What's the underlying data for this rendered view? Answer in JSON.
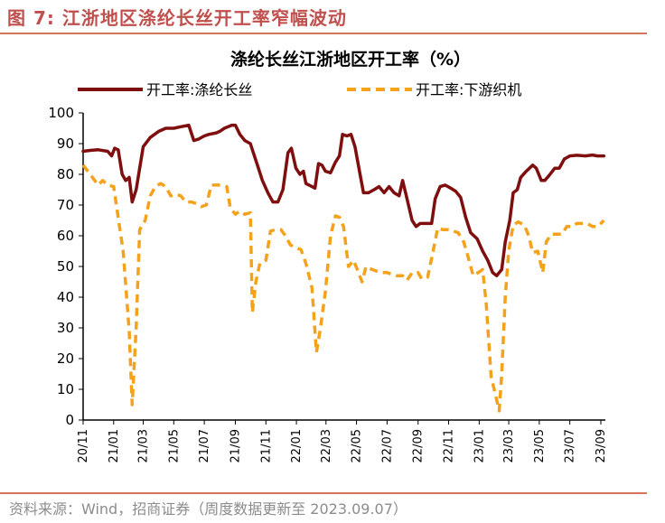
{
  "figure": {
    "number": "图 7:",
    "title": "江浙地区涤纶长丝开工率窄幅波动",
    "source": "资料来源：Wind，招商证券（周度数据更新至 2023.09.07）"
  },
  "colors": {
    "series1": "#7f0e0e",
    "series2": "#f4a21c",
    "accent": "#c0504d",
    "rule": "#d2755a"
  },
  "chart_data": {
    "type": "line",
    "title": "涤纶长丝江浙地区开工率（%）",
    "ylim": [
      0,
      100
    ],
    "yticks": [
      0,
      10,
      20,
      30,
      40,
      50,
      60,
      70,
      80,
      90,
      100
    ],
    "xlim": [
      "2020-11-01",
      "2023-09-10"
    ],
    "xticks": [
      "20/11",
      "21/01",
      "21/03",
      "21/05",
      "21/07",
      "21/09",
      "21/11",
      "22/01",
      "22/03",
      "22/05",
      "22/07",
      "22/09",
      "22/11",
      "23/01",
      "23/03",
      "23/05",
      "23/07",
      "23/09"
    ],
    "legend_position": "top",
    "grid": false,
    "series": [
      {
        "name": "开工率:涤纶长丝",
        "style": "solid",
        "points": [
          [
            "2020-11-01",
            87.5
          ],
          [
            "2020-11-15",
            87.8
          ],
          [
            "2020-12-01",
            88
          ],
          [
            "2020-12-20",
            87.5
          ],
          [
            "2020-12-28",
            86
          ],
          [
            "2021-01-03",
            88.5
          ],
          [
            "2021-01-10",
            88
          ],
          [
            "2021-01-18",
            80
          ],
          [
            "2021-01-25",
            78
          ],
          [
            "2021-02-01",
            79
          ],
          [
            "2021-02-07",
            71
          ],
          [
            "2021-02-15",
            75
          ],
          [
            "2021-02-22",
            82
          ],
          [
            "2021-03-01",
            89
          ],
          [
            "2021-03-15",
            92
          ],
          [
            "2021-04-01",
            94
          ],
          [
            "2021-04-15",
            95
          ],
          [
            "2021-05-01",
            95
          ],
          [
            "2021-05-15",
            95.5
          ],
          [
            "2021-05-31",
            96
          ],
          [
            "2021-06-10",
            91
          ],
          [
            "2021-06-20",
            91.5
          ],
          [
            "2021-07-01",
            92.5
          ],
          [
            "2021-07-10",
            93
          ],
          [
            "2021-07-25",
            93.5
          ],
          [
            "2021-08-01",
            94
          ],
          [
            "2021-08-10",
            95
          ],
          [
            "2021-08-25",
            96
          ],
          [
            "2021-09-01",
            96
          ],
          [
            "2021-09-10",
            93
          ],
          [
            "2021-09-20",
            91
          ],
          [
            "2021-10-01",
            90
          ],
          [
            "2021-10-15",
            83
          ],
          [
            "2021-10-25",
            78
          ],
          [
            "2021-11-05",
            74
          ],
          [
            "2021-11-15",
            71
          ],
          [
            "2021-11-25",
            71
          ],
          [
            "2021-12-05",
            75
          ],
          [
            "2021-12-15",
            87
          ],
          [
            "2021-12-22",
            88.5
          ],
          [
            "2021-12-31",
            82
          ],
          [
            "2022-01-08",
            80
          ],
          [
            "2022-01-15",
            81
          ],
          [
            "2022-01-20",
            77
          ],
          [
            "2022-02-01",
            76
          ],
          [
            "2022-02-07",
            75.5
          ],
          [
            "2022-02-14",
            83.5
          ],
          [
            "2022-02-21",
            83
          ],
          [
            "2022-02-28",
            81
          ],
          [
            "2022-03-10",
            80.5
          ],
          [
            "2022-03-20",
            84
          ],
          [
            "2022-03-28",
            86
          ],
          [
            "2022-04-03",
            93
          ],
          [
            "2022-04-12",
            92.5
          ],
          [
            "2022-04-20",
            93
          ],
          [
            "2022-04-28",
            89
          ],
          [
            "2022-05-08",
            80
          ],
          [
            "2022-05-15",
            74
          ],
          [
            "2022-05-25",
            74
          ],
          [
            "2022-06-05",
            75
          ],
          [
            "2022-06-15",
            76
          ],
          [
            "2022-06-25",
            74
          ],
          [
            "2022-07-05",
            76
          ],
          [
            "2022-07-15",
            74
          ],
          [
            "2022-07-25",
            73
          ],
          [
            "2022-08-01",
            78
          ],
          [
            "2022-08-10",
            72
          ],
          [
            "2022-08-20",
            65
          ],
          [
            "2022-08-28",
            63
          ],
          [
            "2022-09-05",
            64
          ],
          [
            "2022-09-20",
            64
          ],
          [
            "2022-09-28",
            64
          ],
          [
            "2022-10-05",
            72
          ],
          [
            "2022-10-15",
            76
          ],
          [
            "2022-10-25",
            76.5
          ],
          [
            "2022-11-05",
            75.5
          ],
          [
            "2022-11-15",
            74.5
          ],
          [
            "2022-11-25",
            72.5
          ],
          [
            "2022-12-05",
            66
          ],
          [
            "2022-12-15",
            61
          ],
          [
            "2022-12-28",
            59
          ],
          [
            "2023-01-08",
            55
          ],
          [
            "2023-01-18",
            52
          ],
          [
            "2023-01-28",
            48
          ],
          [
            "2023-02-05",
            47
          ],
          [
            "2023-02-15",
            49
          ],
          [
            "2023-02-22",
            58
          ],
          [
            "2023-03-03",
            65
          ],
          [
            "2023-03-10",
            74
          ],
          [
            "2023-03-18",
            75
          ],
          [
            "2023-03-25",
            79
          ],
          [
            "2023-04-05",
            81
          ],
          [
            "2023-04-18",
            83
          ],
          [
            "2023-04-25",
            82
          ],
          [
            "2023-05-05",
            78
          ],
          [
            "2023-05-12",
            78
          ],
          [
            "2023-05-20",
            79.5
          ],
          [
            "2023-06-01",
            82
          ],
          [
            "2023-06-10",
            82
          ],
          [
            "2023-06-20",
            85
          ],
          [
            "2023-07-01",
            86
          ],
          [
            "2023-07-15",
            86.2
          ],
          [
            "2023-08-01",
            86
          ],
          [
            "2023-08-15",
            86.3
          ],
          [
            "2023-08-25",
            86
          ],
          [
            "2023-09-07",
            86
          ]
        ]
      },
      {
        "name": "开工率:下游织机",
        "style": "dashed",
        "points": [
          [
            "2020-11-01",
            83
          ],
          [
            "2020-11-15",
            80
          ],
          [
            "2020-12-01",
            76.5
          ],
          [
            "2020-12-10",
            78
          ],
          [
            "2020-12-20",
            76.5
          ],
          [
            "2021-01-01",
            76
          ],
          [
            "2021-01-10",
            66
          ],
          [
            "2021-01-20",
            55
          ],
          [
            "2021-02-01",
            29
          ],
          [
            "2021-02-07",
            5
          ],
          [
            "2021-02-15",
            30
          ],
          [
            "2021-02-22",
            62
          ],
          [
            "2021-03-05",
            65
          ],
          [
            "2021-03-15",
            73
          ],
          [
            "2021-03-25",
            76
          ],
          [
            "2021-04-05",
            77
          ],
          [
            "2021-04-15",
            76
          ],
          [
            "2021-04-25",
            73
          ],
          [
            "2021-05-05",
            73.5
          ],
          [
            "2021-05-15",
            73
          ],
          [
            "2021-05-25",
            71
          ],
          [
            "2021-06-05",
            71
          ],
          [
            "2021-06-15",
            70.5
          ],
          [
            "2021-06-25",
            69.5
          ],
          [
            "2021-07-05",
            70
          ],
          [
            "2021-07-15",
            76.5
          ],
          [
            "2021-07-25",
            76.5
          ],
          [
            "2021-08-05",
            76.5
          ],
          [
            "2021-08-15",
            76
          ],
          [
            "2021-08-22",
            69
          ],
          [
            "2021-09-01",
            67
          ],
          [
            "2021-09-10",
            68
          ],
          [
            "2021-09-20",
            67
          ],
          [
            "2021-10-01",
            67.5
          ],
          [
            "2021-10-05",
            35
          ],
          [
            "2021-10-12",
            45
          ],
          [
            "2021-10-20",
            51
          ],
          [
            "2021-11-01",
            52
          ],
          [
            "2021-11-10",
            61.5
          ],
          [
            "2021-11-20",
            62
          ],
          [
            "2021-12-01",
            62
          ],
          [
            "2021-12-10",
            60
          ],
          [
            "2021-12-20",
            57
          ],
          [
            "2022-01-01",
            56
          ],
          [
            "2022-01-10",
            55.5
          ],
          [
            "2022-01-20",
            51
          ],
          [
            "2022-02-01",
            43
          ],
          [
            "2022-02-10",
            22
          ],
          [
            "2022-02-18",
            30
          ],
          [
            "2022-02-28",
            42
          ],
          [
            "2022-03-10",
            60
          ],
          [
            "2022-03-20",
            66.5
          ],
          [
            "2022-03-28",
            66
          ],
          [
            "2022-04-05",
            63
          ],
          [
            "2022-04-15",
            50
          ],
          [
            "2022-04-25",
            52
          ],
          [
            "2022-05-05",
            48
          ],
          [
            "2022-05-12",
            45
          ],
          [
            "2022-05-20",
            50
          ],
          [
            "2022-06-01",
            49
          ],
          [
            "2022-06-10",
            48.5
          ],
          [
            "2022-06-20",
            48
          ],
          [
            "2022-07-01",
            48
          ],
          [
            "2022-07-10",
            47.5
          ],
          [
            "2022-07-20",
            47
          ],
          [
            "2022-08-01",
            47
          ],
          [
            "2022-08-10",
            45.5
          ],
          [
            "2022-08-20",
            48
          ],
          [
            "2022-09-01",
            48
          ],
          [
            "2022-09-08",
            46
          ],
          [
            "2022-09-20",
            46.5
          ],
          [
            "2022-10-01",
            55
          ],
          [
            "2022-10-10",
            62.5
          ],
          [
            "2022-10-20",
            62
          ],
          [
            "2022-11-01",
            62
          ],
          [
            "2022-11-10",
            61.5
          ],
          [
            "2022-11-20",
            61
          ],
          [
            "2022-12-01",
            58
          ],
          [
            "2022-12-10",
            53
          ],
          [
            "2022-12-20",
            47
          ],
          [
            "2022-12-30",
            48
          ],
          [
            "2023-01-08",
            49
          ],
          [
            "2023-01-15",
            38
          ],
          [
            "2023-01-25",
            14
          ],
          [
            "2023-02-03",
            8
          ],
          [
            "2023-02-10",
            3
          ],
          [
            "2023-02-15",
            15
          ],
          [
            "2023-02-22",
            40
          ],
          [
            "2023-03-01",
            55
          ],
          [
            "2023-03-10",
            63.5
          ],
          [
            "2023-03-20",
            64.5
          ],
          [
            "2023-04-01",
            63.5
          ],
          [
            "2023-04-10",
            60
          ],
          [
            "2023-04-18",
            54.5
          ],
          [
            "2023-04-28",
            55
          ],
          [
            "2023-05-08",
            48
          ],
          [
            "2023-05-15",
            58
          ],
          [
            "2023-05-25",
            60.5
          ],
          [
            "2023-06-05",
            60.5
          ],
          [
            "2023-06-15",
            60.5
          ],
          [
            "2023-06-25",
            63
          ],
          [
            "2023-07-05",
            63
          ],
          [
            "2023-07-15",
            64
          ],
          [
            "2023-07-25",
            64
          ],
          [
            "2023-08-05",
            64
          ],
          [
            "2023-08-15",
            63
          ],
          [
            "2023-08-25",
            63
          ],
          [
            "2023-09-01",
            64
          ],
          [
            "2023-09-07",
            65
          ]
        ]
      }
    ]
  }
}
